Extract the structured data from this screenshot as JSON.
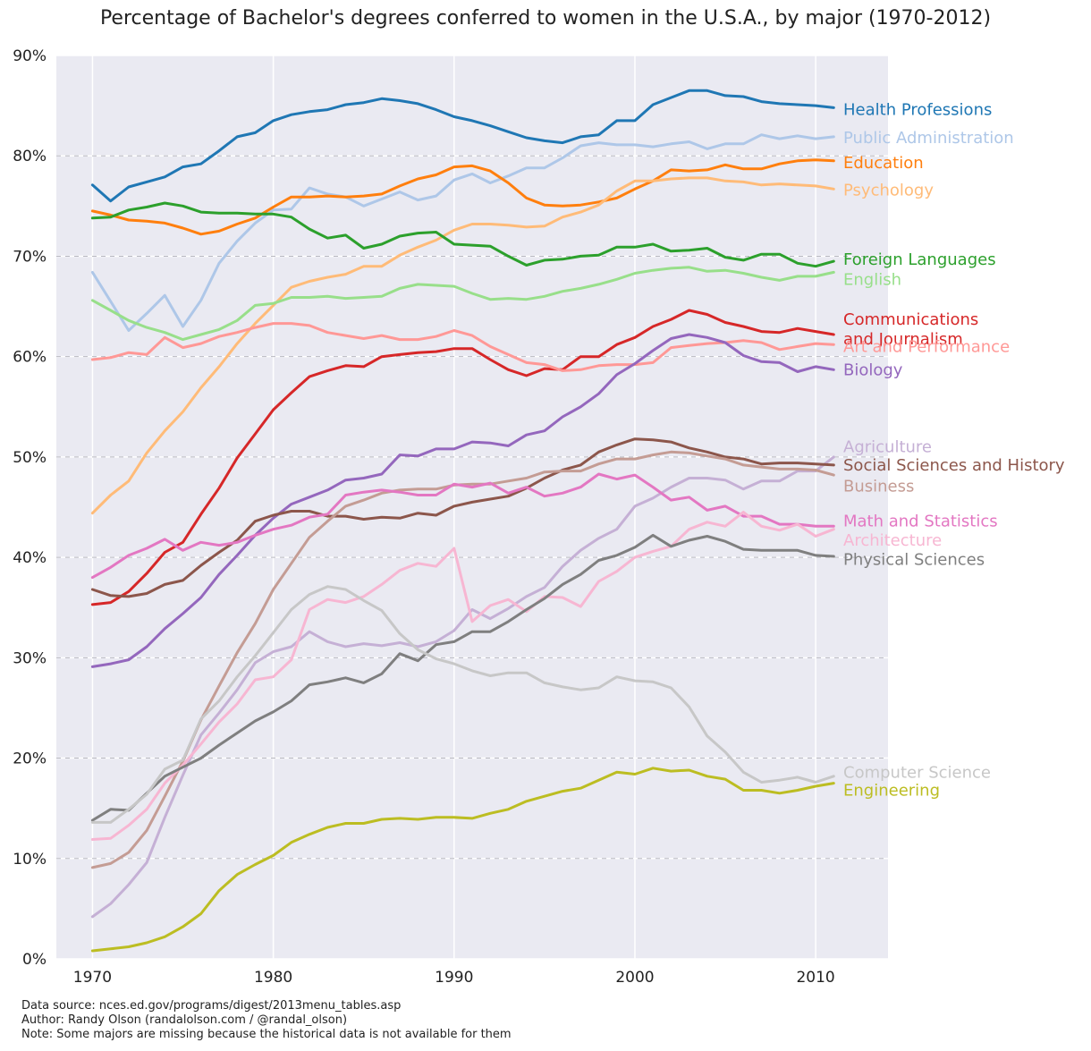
{
  "chart_data": {
    "type": "line",
    "title": "Percentage of Bachelor's degrees conferred to women in the U.S.A., by major (1970-2012)",
    "xlabel": "",
    "ylabel": "",
    "xlim": [
      1968,
      2014
    ],
    "ylim": [
      0,
      90
    ],
    "grid": true,
    "x_ticks": [
      1970,
      1980,
      1990,
      2000,
      2010
    ],
    "y_ticks": [
      0,
      10,
      20,
      30,
      40,
      50,
      60,
      70,
      80,
      90
    ],
    "y_tick_labels": [
      "0%",
      "10%",
      "20%",
      "30%",
      "40%",
      "50%",
      "60%",
      "70%",
      "80%",
      "90%"
    ],
    "x": [
      1970,
      1971,
      1972,
      1973,
      1974,
      1975,
      1976,
      1977,
      1978,
      1979,
      1980,
      1981,
      1982,
      1983,
      1984,
      1985,
      1986,
      1987,
      1988,
      1989,
      1990,
      1991,
      1992,
      1993,
      1994,
      1995,
      1996,
      1997,
      1998,
      1999,
      2000,
      2001,
      2002,
      2003,
      2004,
      2005,
      2006,
      2007,
      2008,
      2009,
      2010,
      2011
    ],
    "series": [
      {
        "name": "Health Professions",
        "color": "#1f77b4",
        "label_lines": [
          "Health Professions"
        ],
        "label_y": 84.6,
        "values": [
          77.1,
          75.5,
          76.9,
          77.4,
          77.9,
          78.9,
          79.2,
          80.5,
          81.9,
          82.3,
          83.5,
          84.1,
          84.4,
          84.6,
          85.1,
          85.3,
          85.7,
          85.5,
          85.2,
          84.6,
          83.9,
          83.5,
          83.0,
          82.4,
          81.8,
          81.5,
          81.3,
          81.9,
          82.1,
          83.5,
          83.5,
          85.1,
          85.8,
          86.5,
          86.5,
          86.0,
          85.9,
          85.4,
          85.2,
          85.1,
          85.0,
          84.8
        ]
      },
      {
        "name": "Public Administration",
        "color": "#aec7e8",
        "label_lines": [
          "Public Administration"
        ],
        "label_y": 81.8,
        "values": [
          68.4,
          65.5,
          62.6,
          64.3,
          66.1,
          63.0,
          65.6,
          69.3,
          71.5,
          73.3,
          74.6,
          74.7,
          76.8,
          76.2,
          75.9,
          75.0,
          75.7,
          76.4,
          75.6,
          76.0,
          77.6,
          78.2,
          77.3,
          78.0,
          78.8,
          78.8,
          79.8,
          81.0,
          81.3,
          81.1,
          81.1,
          80.9,
          81.2,
          81.4,
          80.7,
          81.2,
          81.2,
          82.1,
          81.7,
          82.0,
          81.7,
          81.9
        ]
      },
      {
        "name": "Education",
        "color": "#ff7f0e",
        "label_lines": [
          "Education"
        ],
        "label_y": 79.3,
        "values": [
          74.5,
          74.1,
          73.6,
          73.5,
          73.3,
          72.8,
          72.2,
          72.5,
          73.2,
          73.8,
          74.9,
          75.9,
          75.9,
          76.0,
          75.9,
          76.0,
          76.2,
          77.0,
          77.7,
          78.1,
          78.9,
          79.0,
          78.5,
          77.3,
          75.8,
          75.1,
          75.0,
          75.1,
          75.4,
          75.8,
          76.7,
          77.5,
          78.6,
          78.5,
          78.6,
          79.1,
          78.7,
          78.7,
          79.2,
          79.5,
          79.6,
          79.5
        ]
      },
      {
        "name": "Psychology",
        "color": "#ffbb78",
        "label_lines": [
          "Psychology"
        ],
        "label_y": 76.6,
        "values": [
          44.4,
          46.2,
          47.6,
          50.4,
          52.6,
          54.5,
          56.9,
          59.0,
          61.3,
          63.3,
          65.1,
          66.9,
          67.5,
          67.9,
          68.2,
          69.0,
          69.0,
          70.1,
          70.9,
          71.6,
          72.6,
          73.2,
          73.2,
          73.1,
          72.9,
          73.0,
          73.9,
          74.4,
          75.1,
          76.5,
          77.5,
          77.5,
          77.7,
          77.8,
          77.8,
          77.5,
          77.4,
          77.1,
          77.2,
          77.1,
          77.0,
          76.7
        ]
      },
      {
        "name": "Foreign Languages",
        "color": "#2ca02c",
        "label_lines": [
          "Foreign Languages"
        ],
        "label_y": 69.7,
        "values": [
          73.8,
          73.9,
          74.6,
          74.9,
          75.3,
          75.0,
          74.4,
          74.3,
          74.3,
          74.2,
          74.2,
          73.9,
          72.7,
          71.8,
          72.1,
          70.8,
          71.2,
          72.0,
          72.3,
          72.4,
          71.2,
          71.1,
          71.0,
          70.0,
          69.1,
          69.6,
          69.7,
          70.0,
          70.1,
          70.9,
          70.9,
          71.2,
          70.5,
          70.6,
          70.8,
          69.9,
          69.6,
          70.2,
          70.2,
          69.3,
          69.0,
          69.5
        ]
      },
      {
        "name": "English",
        "color": "#98df8a",
        "label_lines": [
          "English"
        ],
        "label_y": 67.7,
        "values": [
          65.6,
          64.6,
          63.6,
          62.9,
          62.4,
          61.7,
          62.2,
          62.7,
          63.6,
          65.1,
          65.3,
          65.9,
          65.9,
          66.0,
          65.8,
          65.9,
          66.0,
          66.8,
          67.2,
          67.1,
          67.0,
          66.3,
          65.7,
          65.8,
          65.7,
          66.0,
          66.5,
          66.8,
          67.2,
          67.7,
          68.3,
          68.6,
          68.8,
          68.9,
          68.5,
          68.6,
          68.3,
          67.9,
          67.6,
          68.0,
          68.0,
          68.4
        ]
      },
      {
        "name": "Communications and Journalism",
        "color": "#d62728",
        "label_lines": [
          "Communications",
          "and Journalism"
        ],
        "label_y": 63.7,
        "values": [
          35.3,
          35.5,
          36.6,
          38.4,
          40.5,
          41.5,
          44.3,
          46.9,
          49.9,
          52.3,
          54.7,
          56.4,
          58.0,
          58.6,
          59.1,
          59.0,
          60.0,
          60.2,
          60.4,
          60.5,
          60.8,
          60.8,
          59.7,
          58.7,
          58.1,
          58.8,
          58.7,
          60.0,
          60.0,
          61.2,
          61.9,
          63.0,
          63.7,
          64.6,
          64.2,
          63.4,
          63.0,
          62.5,
          62.4,
          62.8,
          62.5,
          62.2
        ]
      },
      {
        "name": "Art and Performance",
        "color": "#ff9896",
        "label_lines": [
          "Art and Performance"
        ],
        "label_y": 61.0,
        "values": [
          59.7,
          59.9,
          60.4,
          60.2,
          61.9,
          60.9,
          61.3,
          62.0,
          62.4,
          62.9,
          63.3,
          63.3,
          63.1,
          62.4,
          62.1,
          61.8,
          62.1,
          61.7,
          61.7,
          62.0,
          62.6,
          62.1,
          61.0,
          60.2,
          59.4,
          59.2,
          58.6,
          58.7,
          59.1,
          59.2,
          59.2,
          59.4,
          60.9,
          61.1,
          61.3,
          61.4,
          61.6,
          61.4,
          60.7,
          61.0,
          61.3,
          61.2
        ]
      },
      {
        "name": "Biology",
        "color": "#9467bd",
        "label_lines": [
          "Biology"
        ],
        "label_y": 58.7,
        "values": [
          29.1,
          29.4,
          29.8,
          31.1,
          32.9,
          34.4,
          36.0,
          38.3,
          40.2,
          42.2,
          43.9,
          45.3,
          46.0,
          46.7,
          47.7,
          47.9,
          48.3,
          50.2,
          50.1,
          50.8,
          50.8,
          51.5,
          51.4,
          51.1,
          52.2,
          52.6,
          54.0,
          55.0,
          56.3,
          58.2,
          59.3,
          60.6,
          61.8,
          62.2,
          61.9,
          61.4,
          60.1,
          59.5,
          59.4,
          58.5,
          59.0,
          58.7
        ]
      },
      {
        "name": "Agriculture",
        "color": "#c5b0d5",
        "label_lines": [
          "Agriculture"
        ],
        "label_y": 51.0,
        "values": [
          4.2,
          5.5,
          7.4,
          9.6,
          14.1,
          18.3,
          22.3,
          24.5,
          26.8,
          29.5,
          30.6,
          31.1,
          32.6,
          31.6,
          31.1,
          31.4,
          31.2,
          31.5,
          31.1,
          31.6,
          32.7,
          34.8,
          33.9,
          34.9,
          36.1,
          37.0,
          39.1,
          40.7,
          41.9,
          42.8,
          45.1,
          45.9,
          47.0,
          47.9,
          47.9,
          47.7,
          46.8,
          47.6,
          47.6,
          48.6,
          48.6,
          50.0
        ]
      },
      {
        "name": "Social Sciences and History",
        "color": "#8c564b",
        "label_lines": [
          "Social Sciences and History"
        ],
        "label_y": 49.2,
        "values": [
          36.8,
          36.2,
          36.1,
          36.4,
          37.3,
          37.7,
          39.2,
          40.5,
          41.7,
          43.6,
          44.2,
          44.6,
          44.6,
          44.1,
          44.1,
          43.8,
          44.0,
          43.9,
          44.4,
          44.2,
          45.1,
          45.5,
          45.8,
          46.1,
          46.9,
          47.9,
          48.7,
          49.2,
          50.5,
          51.2,
          51.8,
          51.7,
          51.5,
          50.9,
          50.5,
          50.0,
          49.8,
          49.3,
          49.4,
          49.4,
          49.3,
          49.2
        ]
      },
      {
        "name": "Business",
        "color": "#c49c94",
        "label_lines": [
          "Business"
        ],
        "label_y": 47.1,
        "values": [
          9.1,
          9.5,
          10.6,
          12.8,
          16.2,
          19.7,
          23.8,
          27.2,
          30.5,
          33.4,
          36.8,
          39.4,
          42.0,
          43.6,
          45.1,
          45.7,
          46.4,
          46.7,
          46.8,
          46.8,
          47.2,
          47.3,
          47.3,
          47.6,
          47.9,
          48.5,
          48.6,
          48.6,
          49.3,
          49.8,
          49.8,
          50.2,
          50.5,
          50.4,
          50.1,
          49.8,
          49.2,
          49.0,
          48.8,
          48.8,
          48.7,
          48.2
        ]
      },
      {
        "name": "Math and Statistics",
        "color": "#e377c2",
        "label_lines": [
          "Math and Statistics"
        ],
        "label_y": 43.6,
        "values": [
          38.0,
          39.0,
          40.2,
          40.9,
          41.8,
          40.7,
          41.5,
          41.2,
          41.5,
          42.2,
          42.8,
          43.2,
          44.0,
          44.3,
          46.2,
          46.5,
          46.7,
          46.5,
          46.2,
          46.2,
          47.3,
          47.0,
          47.4,
          46.4,
          47.0,
          46.1,
          46.4,
          47.0,
          48.3,
          47.8,
          48.2,
          47.0,
          45.7,
          46.0,
          44.7,
          45.1,
          44.1,
          44.1,
          43.3,
          43.3,
          43.1,
          43.1
        ]
      },
      {
        "name": "Architecture",
        "color": "#f7b6d2",
        "label_lines": [
          "Architecture"
        ],
        "label_y": 41.7,
        "values": [
          11.9,
          12.0,
          13.3,
          14.9,
          17.5,
          19.3,
          21.4,
          23.6,
          25.4,
          27.8,
          28.1,
          29.8,
          34.8,
          35.8,
          35.5,
          36.1,
          37.3,
          38.7,
          39.4,
          39.1,
          40.9,
          33.6,
          35.2,
          35.8,
          34.6,
          36.1,
          36.0,
          35.1,
          37.6,
          38.6,
          40.0,
          40.6,
          41.1,
          42.8,
          43.5,
          43.1,
          44.5,
          43.1,
          42.7,
          43.3,
          42.1,
          42.8
        ]
      },
      {
        "name": "Physical Sciences",
        "color": "#7f7f7f",
        "label_lines": [
          "Physical Sciences"
        ],
        "label_y": 39.8,
        "values": [
          13.8,
          14.9,
          14.8,
          16.5,
          18.2,
          19.1,
          20.0,
          21.3,
          22.5,
          23.7,
          24.6,
          25.7,
          27.3,
          27.6,
          28.0,
          27.5,
          28.4,
          30.4,
          29.7,
          31.3,
          31.6,
          32.6,
          32.6,
          33.6,
          34.8,
          35.9,
          37.3,
          38.3,
          39.7,
          40.2,
          41.0,
          42.2,
          41.1,
          41.7,
          42.1,
          41.6,
          40.8,
          40.7,
          40.7,
          40.7,
          40.2,
          40.1
        ]
      },
      {
        "name": "Computer Science",
        "color": "#c7c7c7",
        "label_lines": [
          "Computer Science"
        ],
        "label_y": 18.6,
        "values": [
          13.6,
          13.6,
          14.9,
          16.4,
          18.9,
          19.8,
          23.9,
          25.7,
          28.1,
          30.2,
          32.5,
          34.8,
          36.3,
          37.1,
          36.8,
          35.7,
          34.7,
          32.4,
          30.8,
          29.9,
          29.4,
          28.7,
          28.2,
          28.5,
          28.5,
          27.5,
          27.1,
          26.8,
          27.0,
          28.1,
          27.7,
          27.6,
          27.0,
          25.1,
          22.2,
          20.6,
          18.6,
          17.6,
          17.8,
          18.1,
          17.6,
          18.2
        ]
      },
      {
        "name": "Engineering",
        "color": "#bcbd22",
        "label_lines": [
          "Engineering"
        ],
        "label_y": 16.8,
        "values": [
          0.8,
          1.0,
          1.2,
          1.6,
          2.2,
          3.2,
          4.5,
          6.8,
          8.4,
          9.4,
          10.3,
          11.6,
          12.4,
          13.1,
          13.5,
          13.5,
          13.9,
          14.0,
          13.9,
          14.1,
          14.1,
          14.0,
          14.5,
          14.9,
          15.7,
          16.2,
          16.7,
          17.0,
          17.8,
          18.6,
          18.4,
          19.0,
          18.7,
          18.8,
          18.2,
          17.9,
          16.8,
          16.8,
          16.5,
          16.8,
          17.2,
          17.5
        ]
      }
    ]
  },
  "footer": {
    "line1": "Data source: nces.ed.gov/programs/digest/2013menu_tables.asp",
    "line2": "Author: Randy Olson (randalolson.com / @randal_olson)",
    "line3": "Note: Some majors are missing because the historical data is not available for them"
  }
}
